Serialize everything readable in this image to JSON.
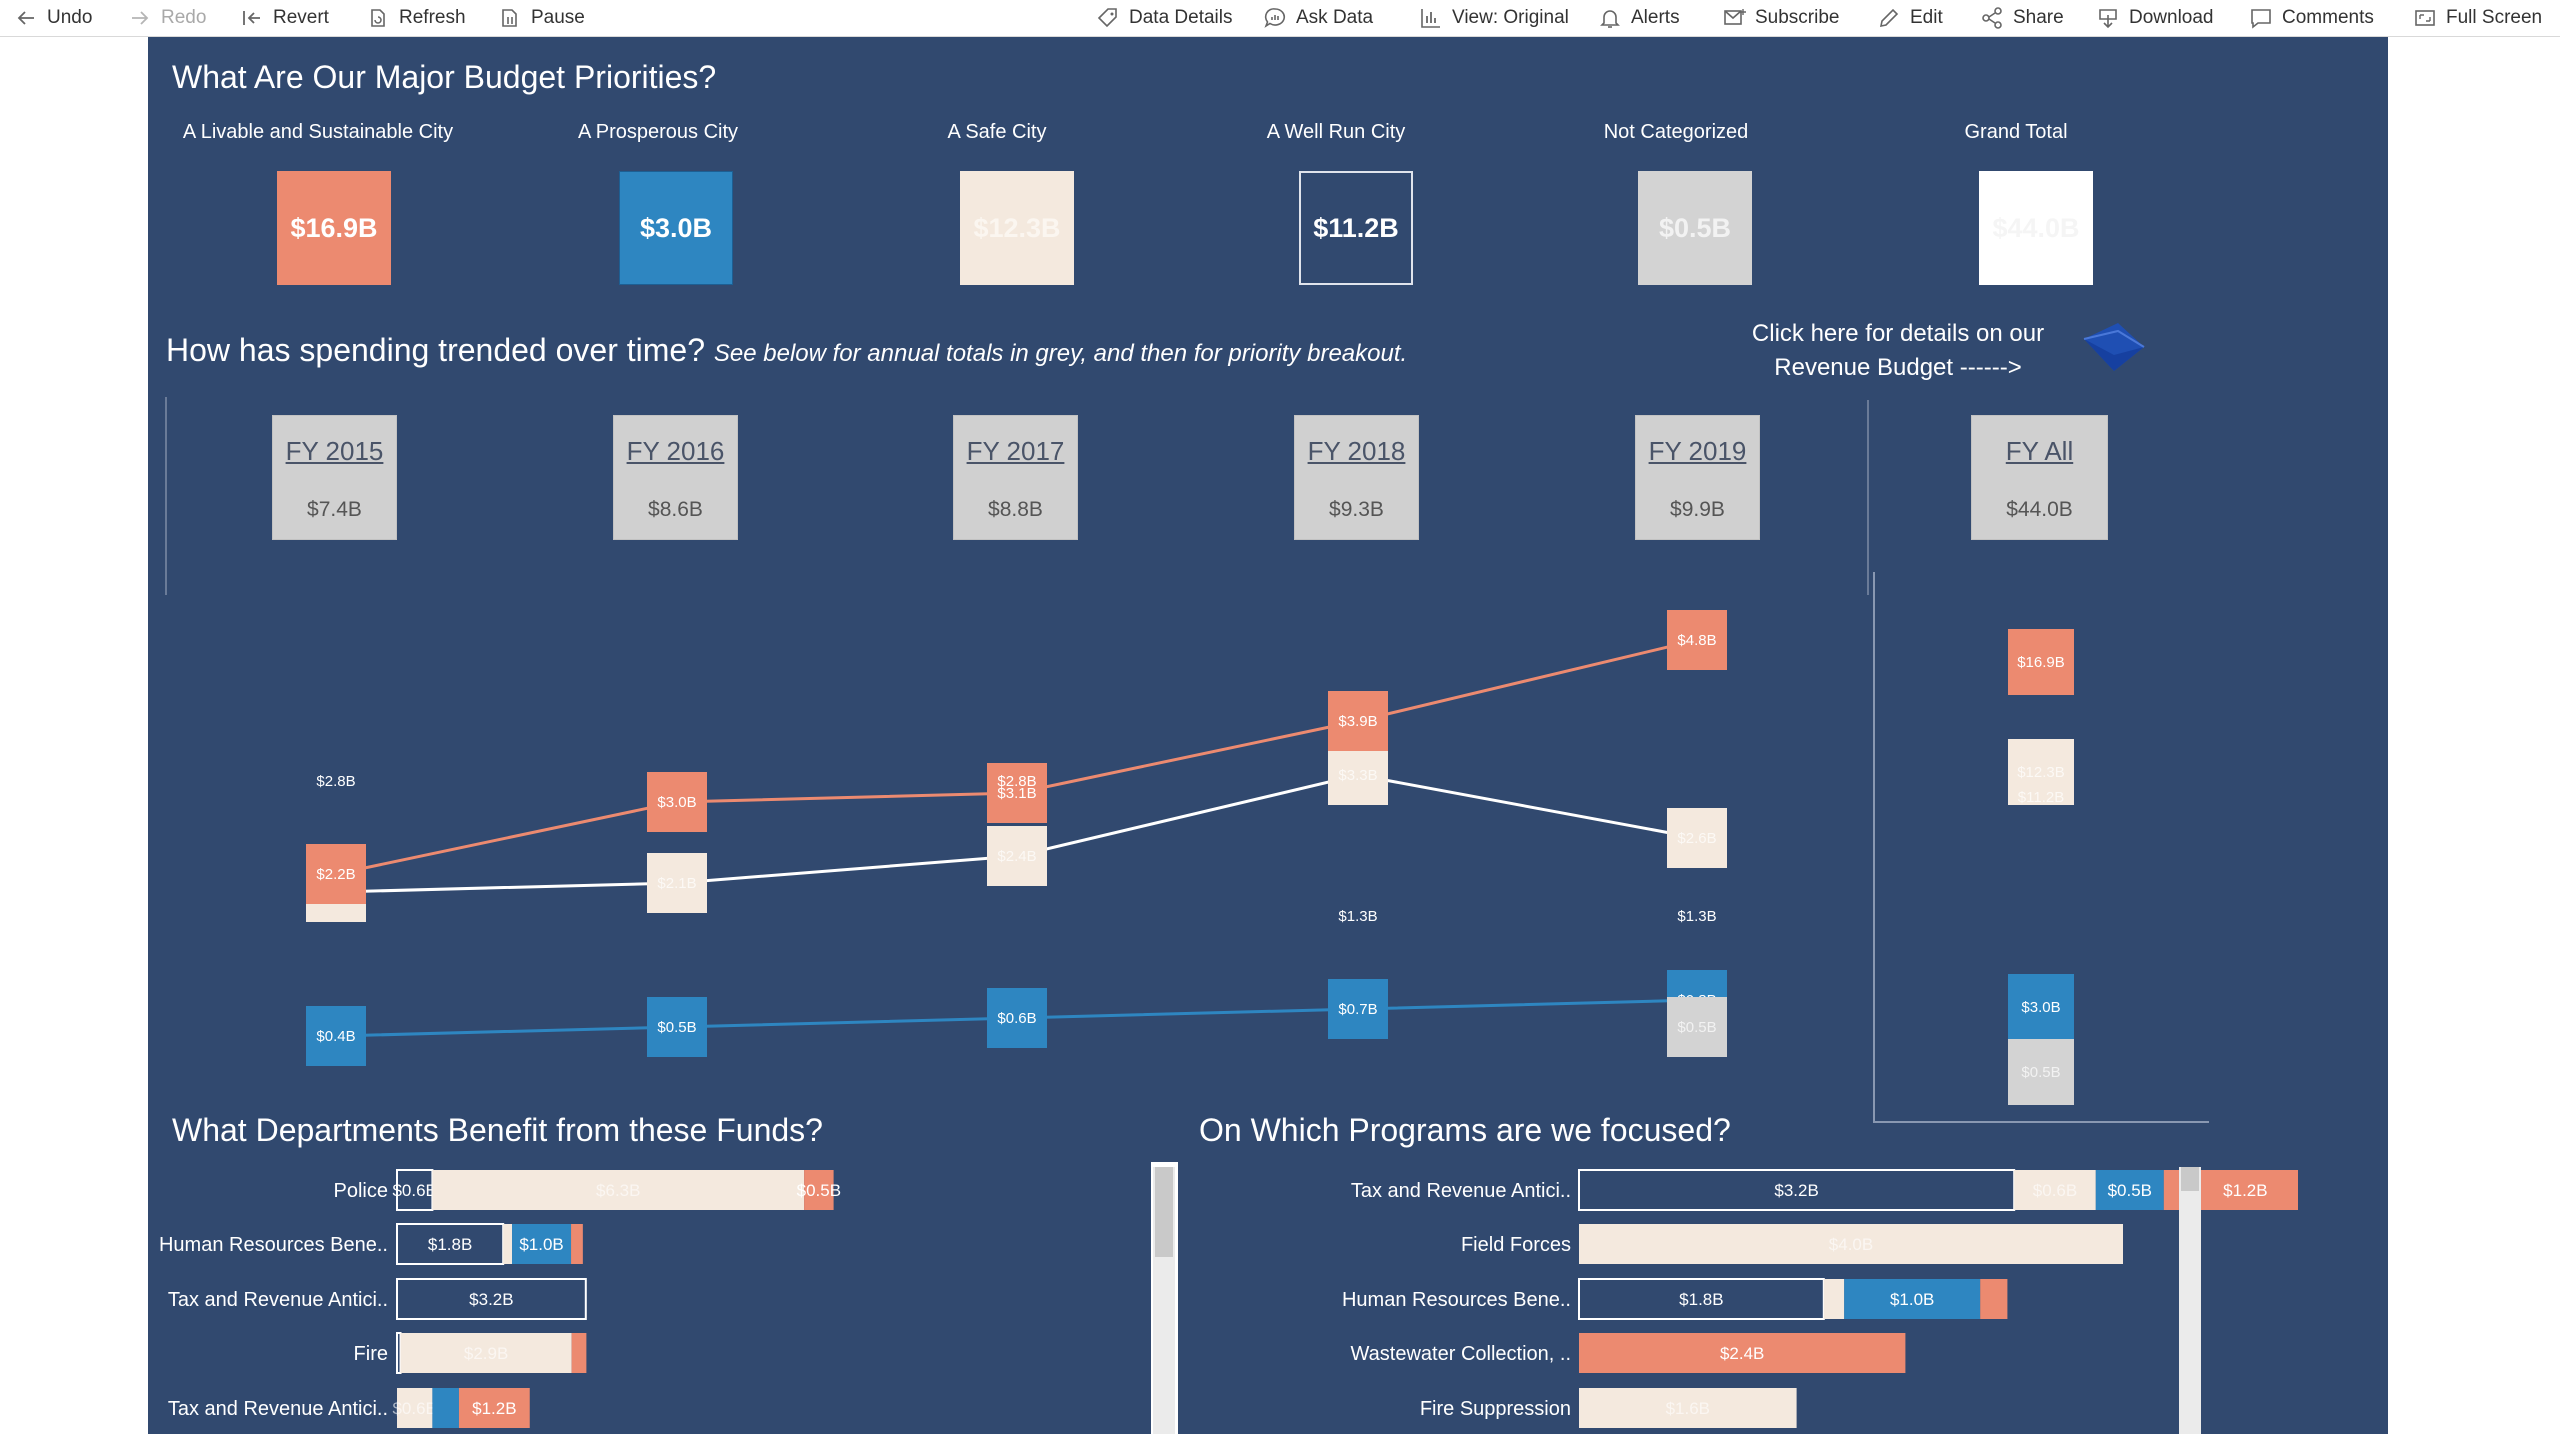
{
  "toolbar": {
    "undo": "Undo",
    "redo": "Redo",
    "revert": "Revert",
    "refresh": "Refresh",
    "pause": "Pause",
    "data_details": "Data Details",
    "ask_data": "Ask Data",
    "view": "View: Original",
    "alerts": "Alerts",
    "subscribe": "Subscribe",
    "edit": "Edit",
    "share": "Share",
    "download": "Download",
    "comments": "Comments",
    "full_screen": "Full Screen"
  },
  "colors": {
    "prosperous": "#2e86c1",
    "livable": "#ec8a70",
    "safe": "#f4e9de",
    "notcat": "#d3d3d3",
    "navy": "#31496f"
  },
  "priorities": {
    "title": "What Are Our Major Budget Priorities?",
    "items": [
      {
        "label": "A Livable and Sustainable City",
        "value": "$16.9B"
      },
      {
        "label": "A Prosperous City",
        "value": "$3.0B"
      },
      {
        "label": "A Safe City",
        "value": "$12.3B"
      },
      {
        "label": "A Well Run City",
        "value": "$11.2B"
      },
      {
        "label": "Not Categorized",
        "value": "$0.5B"
      },
      {
        "label": "Grand Total",
        "value": "$44.0B"
      }
    ]
  },
  "trend": {
    "title": "How has spending trended over time?",
    "subtitle": "See below for annual totals in grey, and then for priority breakout.",
    "revenue_link_line1": "Click here for details on our",
    "revenue_link_line2": "Revenue Budget ------>",
    "years": [
      {
        "label": "FY 2015",
        "total": "$7.4B"
      },
      {
        "label": "FY 2016",
        "total": "$8.6B"
      },
      {
        "label": "FY 2017",
        "total": "$8.8B"
      },
      {
        "label": "FY 2018",
        "total": "$9.3B"
      },
      {
        "label": "FY 2019",
        "total": "$9.9B"
      },
      {
        "label": "FY All",
        "total": "$44.0B"
      }
    ]
  },
  "chart_data": [
    {
      "type": "line",
      "title": "How has spending trended over time?",
      "x": [
        "FY 2015",
        "FY 2016",
        "FY 2017",
        "FY 2018",
        "FY 2019"
      ],
      "series": [
        {
          "name": "A Livable and Sustainable City",
          "values": [
            2.2,
            3.0,
            3.1,
            3.9,
            4.8
          ],
          "labels": [
            "$2.2B",
            "$3.0B",
            "$3.1B",
            "$3.9B",
            "$4.8B"
          ]
        },
        {
          "name": "A Safe City",
          "values": [
            2.0,
            2.1,
            2.4,
            3.3,
            2.6
          ],
          "labels": [
            "$2.0B",
            "$2.1B",
            "$2.4B",
            "$3.3B",
            "$2.6B"
          ]
        },
        {
          "name": "A Prosperous City",
          "values": [
            0.4,
            0.5,
            0.6,
            0.7,
            0.8
          ],
          "labels": [
            "$0.4B",
            "$0.5B",
            "$0.6B",
            "$0.7B",
            "$0.8B"
          ]
        },
        {
          "name": "Not Categorized",
          "values": [
            null,
            null,
            null,
            null,
            0.5
          ],
          "labels": [
            "",
            "",
            "",
            "",
            "$0.5B"
          ]
        }
      ],
      "annotations": [
        {
          "x": "FY 2015",
          "value": 2.8,
          "label": "$2.8B"
        },
        {
          "x": "FY 2017",
          "value": 2.8,
          "label": "$2.8B"
        },
        {
          "x": "FY 2018",
          "value": 1.3,
          "label": "$1.3B"
        },
        {
          "x": "FY 2019",
          "value": 1.3,
          "label": "$1.3B"
        }
      ],
      "fy_all": [
        {
          "name": "A Livable and Sustainable City",
          "value": 16.9,
          "label": "$16.9B"
        },
        {
          "name": "A Safe City",
          "value": 12.3,
          "label": "$12.3B"
        },
        {
          "name": "A Well Run City",
          "value": 11.2,
          "label": "$11.2B"
        },
        {
          "name": "A Prosperous City",
          "value": 3.0,
          "label": "$3.0B"
        },
        {
          "name": "Not Categorized",
          "value": 0.5,
          "label": "$0.5B"
        }
      ]
    },
    {
      "type": "bar",
      "title": "What Departments Benefit from these Funds?",
      "categories": [
        "Police",
        "Human Resources Bene..",
        "Tax and Revenue Antici..",
        "Fire",
        "Tax and Revenue Antici.."
      ],
      "rows": [
        [
          {
            "series": "A Well Run City",
            "value": 0.6,
            "label": "$0.6B"
          },
          {
            "series": "A Safe City",
            "value": 6.3,
            "label": "$6.3B"
          },
          {
            "series": "A Livable and Sustainable City",
            "value": 0.5,
            "label": "$0.5B"
          }
        ],
        [
          {
            "series": "A Well Run City",
            "value": 1.8,
            "label": "$1.8B"
          },
          {
            "series": "A Safe City",
            "value": 0.15,
            "label": ""
          },
          {
            "series": "A Prosperous City",
            "value": 1.0,
            "label": "$1.0B"
          },
          {
            "series": "A Livable and Sustainable City",
            "value": 0.2,
            "label": ""
          }
        ],
        [
          {
            "series": "A Well Run City",
            "value": 3.2,
            "label": "$3.2B"
          }
        ],
        [
          {
            "series": "A Well Run City",
            "value": 0.06,
            "label": ""
          },
          {
            "series": "A Safe City",
            "value": 2.9,
            "label": "$2.9B"
          },
          {
            "series": "A Livable and Sustainable City",
            "value": 0.25,
            "label": ""
          }
        ],
        [
          {
            "series": "A Safe City",
            "value": 0.6,
            "label": "$0.6B"
          },
          {
            "series": "A Prosperous City",
            "value": 0.45,
            "label": ""
          },
          {
            "series": "A Livable and Sustainable City",
            "value": 1.2,
            "label": "$1.2B"
          }
        ]
      ]
    },
    {
      "type": "bar",
      "title": "On Which Programs are we focused?",
      "categories": [
        "Tax and Revenue Antici..",
        "Field Forces",
        "Human Resources Bene..",
        "Wastewater Collection, ..",
        "Fire Suppression"
      ],
      "rows": [
        [
          {
            "series": "A Well Run City",
            "value": 3.2,
            "label": "$3.2B"
          },
          {
            "series": "A Safe City",
            "value": 0.6,
            "label": "$0.6B"
          },
          {
            "series": "A Prosperous City",
            "value": 0.5,
            "label": "$0.5B"
          },
          {
            "series": "A Livable and Sustainable City",
            "value": 1.2,
            "label": "$1.2B"
          }
        ],
        [
          {
            "series": "A Safe City",
            "value": 4.0,
            "label": "$4.0B"
          }
        ],
        [
          {
            "series": "A Well Run City",
            "value": 1.8,
            "label": "$1.8B"
          },
          {
            "series": "A Safe City",
            "value": 0.15,
            "label": ""
          },
          {
            "series": "A Prosperous City",
            "value": 1.0,
            "label": "$1.0B"
          },
          {
            "series": "A Livable and Sustainable City",
            "value": 0.2,
            "label": ""
          }
        ],
        [
          {
            "series": "A Livable and Sustainable City",
            "value": 2.4,
            "label": "$2.4B"
          }
        ],
        [
          {
            "series": "A Safe City",
            "value": 1.6,
            "label": "$1.6B"
          }
        ]
      ]
    }
  ],
  "departments": {
    "title": "What Departments Benefit from these Funds?"
  },
  "programs": {
    "title": "On Which Programs are we focused?"
  }
}
